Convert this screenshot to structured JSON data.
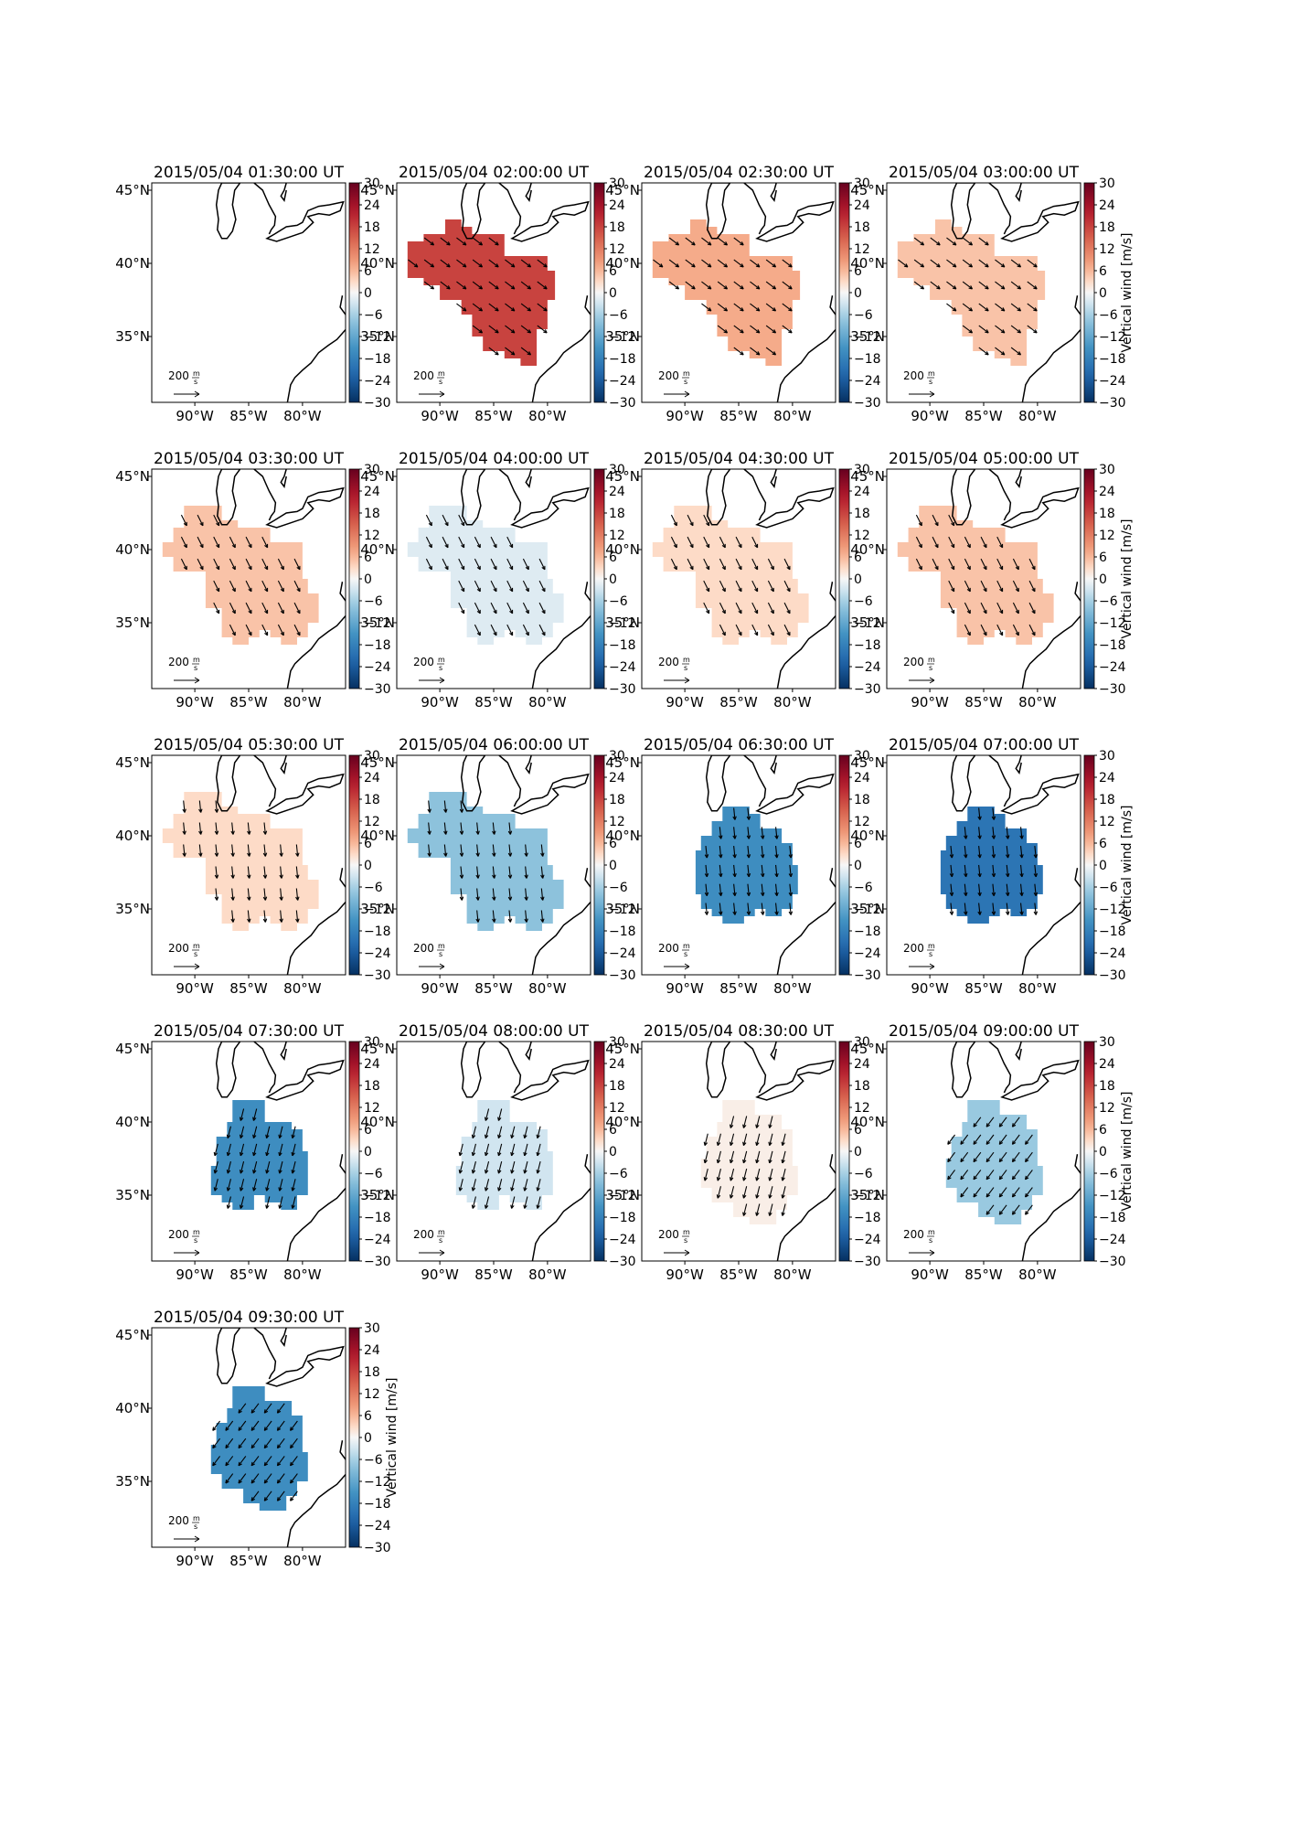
{
  "figure": {
    "colorbar_label": "Vertical wind [m/s]",
    "colorbar_ticks": [
      "30",
      "24",
      "18",
      "12",
      "6",
      "0",
      "−6",
      "−12",
      "−18",
      "−24",
      "−30"
    ],
    "lat_ticks": [
      "45°N",
      "40°N",
      "35°N"
    ],
    "lon_ticks": [
      "90°W",
      "85°W",
      "80°W"
    ],
    "quiver_key": {
      "value": "200",
      "unit_num": "m",
      "unit_den": "s"
    },
    "colormap": "RdBu_r"
  },
  "chart_data": {
    "type": "heatmap",
    "quantity": "Vertical wind [m/s]",
    "clim": [
      -30,
      30
    ],
    "lat_range": [
      30.5,
      45.5
    ],
    "lon_range": [
      -94,
      -76
    ],
    "panels": [
      {
        "title": "2015/05/04 01:30:00 UT",
        "value": null,
        "region": "none",
        "wind": "none",
        "colorbar_label": false
      },
      {
        "title": "2015/05/04 02:00:00 UT",
        "value": 18,
        "region": "A",
        "wind": "se",
        "colorbar_label": false
      },
      {
        "title": "2015/05/04 02:30:00 UT",
        "value": 7,
        "region": "A",
        "wind": "se",
        "colorbar_label": false
      },
      {
        "title": "2015/05/04 03:00:00 UT",
        "value": 5,
        "region": "A",
        "wind": "se",
        "colorbar_label": true
      },
      {
        "title": "2015/05/04 03:30:00 UT",
        "value": 5,
        "region": "B",
        "wind": "sse",
        "colorbar_label": false
      },
      {
        "title": "2015/05/04 04:00:00 UT",
        "value": -2,
        "region": "B",
        "wind": "sse",
        "colorbar_label": false
      },
      {
        "title": "2015/05/04 04:30:00 UT",
        "value": 3,
        "region": "B",
        "wind": "sse",
        "colorbar_label": false
      },
      {
        "title": "2015/05/04 05:00:00 UT",
        "value": 5,
        "region": "B",
        "wind": "sse",
        "colorbar_label": true
      },
      {
        "title": "2015/05/04 05:30:00 UT",
        "value": 3,
        "region": "B",
        "wind": "s",
        "colorbar_label": false
      },
      {
        "title": "2015/05/04 06:00:00 UT",
        "value": -8,
        "region": "B",
        "wind": "s",
        "colorbar_label": false
      },
      {
        "title": "2015/05/04 06:30:00 UT",
        "value": -16,
        "region": "C",
        "wind": "s",
        "colorbar_label": false
      },
      {
        "title": "2015/05/04 07:00:00 UT",
        "value": -20,
        "region": "C",
        "wind": "s",
        "colorbar_label": true
      },
      {
        "title": "2015/05/04 07:30:00 UT",
        "value": -16,
        "region": "D",
        "wind": "ssw",
        "colorbar_label": false
      },
      {
        "title": "2015/05/04 08:00:00 UT",
        "value": -3,
        "region": "D",
        "wind": "ssw",
        "colorbar_label": false
      },
      {
        "title": "2015/05/04 08:30:00 UT",
        "value": 1,
        "region": "E",
        "wind": "ssw",
        "colorbar_label": false
      },
      {
        "title": "2015/05/04 09:00:00 UT",
        "value": -7,
        "region": "E",
        "wind": "sw",
        "colorbar_label": true
      },
      {
        "title": "2015/05/04 09:30:00 UT",
        "value": -16,
        "region": "E",
        "wind": "sw",
        "colorbar_label": true
      }
    ]
  }
}
